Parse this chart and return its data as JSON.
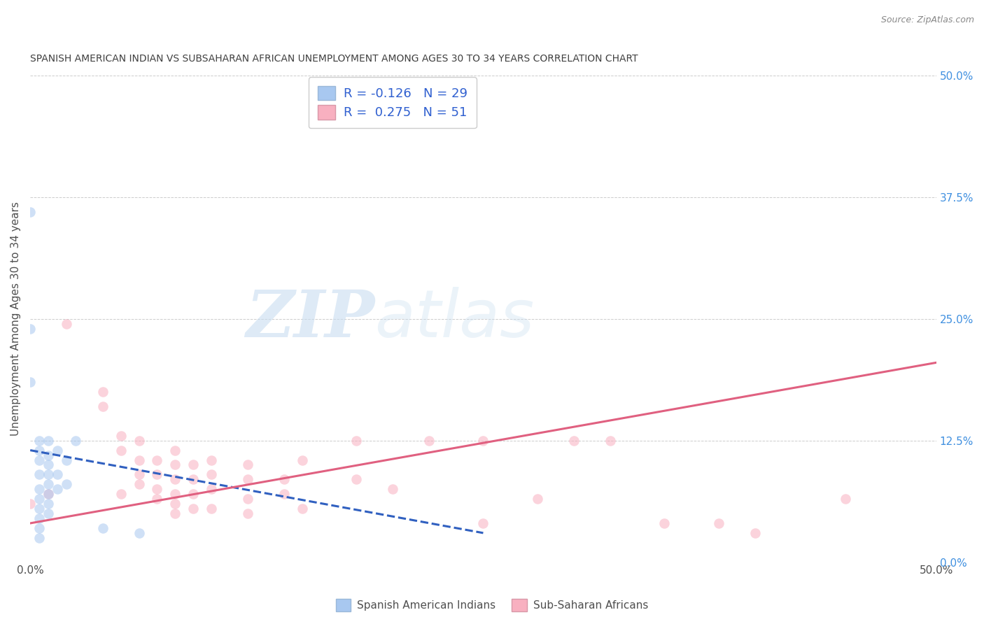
{
  "title": "SPANISH AMERICAN INDIAN VS SUBSAHARAN AFRICAN UNEMPLOYMENT AMONG AGES 30 TO 34 YEARS CORRELATION CHART",
  "source": "Source: ZipAtlas.com",
  "ylabel": "Unemployment Among Ages 30 to 34 years",
  "xlim": [
    0.0,
    0.5
  ],
  "ylim": [
    0.0,
    0.5
  ],
  "xticks": [
    0.0,
    0.125,
    0.25,
    0.375,
    0.5
  ],
  "yticks": [
    0.0,
    0.125,
    0.25,
    0.375,
    0.5
  ],
  "ytick_labels_right": [
    "0.0%",
    "12.5%",
    "25.0%",
    "37.5%",
    "50.0%"
  ],
  "watermark_zip": "ZIP",
  "watermark_atlas": "atlas",
  "blue_scatter": [
    [
      0.0,
      0.36
    ],
    [
      0.0,
      0.24
    ],
    [
      0.0,
      0.185
    ],
    [
      0.005,
      0.125
    ],
    [
      0.005,
      0.115
    ],
    [
      0.005,
      0.105
    ],
    [
      0.005,
      0.09
    ],
    [
      0.005,
      0.075
    ],
    [
      0.005,
      0.065
    ],
    [
      0.005,
      0.055
    ],
    [
      0.005,
      0.045
    ],
    [
      0.005,
      0.035
    ],
    [
      0.005,
      0.025
    ],
    [
      0.01,
      0.125
    ],
    [
      0.01,
      0.11
    ],
    [
      0.01,
      0.1
    ],
    [
      0.01,
      0.09
    ],
    [
      0.01,
      0.08
    ],
    [
      0.01,
      0.07
    ],
    [
      0.01,
      0.06
    ],
    [
      0.01,
      0.05
    ],
    [
      0.015,
      0.115
    ],
    [
      0.015,
      0.09
    ],
    [
      0.015,
      0.075
    ],
    [
      0.02,
      0.105
    ],
    [
      0.02,
      0.08
    ],
    [
      0.025,
      0.125
    ],
    [
      0.06,
      0.03
    ],
    [
      0.04,
      0.035
    ]
  ],
  "pink_scatter": [
    [
      0.02,
      0.245
    ],
    [
      0.04,
      0.175
    ],
    [
      0.04,
      0.16
    ],
    [
      0.05,
      0.13
    ],
    [
      0.05,
      0.115
    ],
    [
      0.05,
      0.07
    ],
    [
      0.06,
      0.125
    ],
    [
      0.06,
      0.105
    ],
    [
      0.06,
      0.09
    ],
    [
      0.06,
      0.08
    ],
    [
      0.07,
      0.105
    ],
    [
      0.07,
      0.09
    ],
    [
      0.07,
      0.075
    ],
    [
      0.07,
      0.065
    ],
    [
      0.08,
      0.115
    ],
    [
      0.08,
      0.1
    ],
    [
      0.08,
      0.085
    ],
    [
      0.08,
      0.07
    ],
    [
      0.08,
      0.06
    ],
    [
      0.08,
      0.05
    ],
    [
      0.09,
      0.1
    ],
    [
      0.09,
      0.085
    ],
    [
      0.09,
      0.07
    ],
    [
      0.09,
      0.055
    ],
    [
      0.1,
      0.105
    ],
    [
      0.1,
      0.09
    ],
    [
      0.1,
      0.075
    ],
    [
      0.1,
      0.055
    ],
    [
      0.12,
      0.1
    ],
    [
      0.12,
      0.085
    ],
    [
      0.12,
      0.065
    ],
    [
      0.12,
      0.05
    ],
    [
      0.14,
      0.085
    ],
    [
      0.14,
      0.07
    ],
    [
      0.15,
      0.105
    ],
    [
      0.15,
      0.055
    ],
    [
      0.18,
      0.125
    ],
    [
      0.18,
      0.085
    ],
    [
      0.2,
      0.075
    ],
    [
      0.22,
      0.125
    ],
    [
      0.25,
      0.125
    ],
    [
      0.25,
      0.04
    ],
    [
      0.28,
      0.065
    ],
    [
      0.3,
      0.125
    ],
    [
      0.32,
      0.125
    ],
    [
      0.35,
      0.04
    ],
    [
      0.38,
      0.04
    ],
    [
      0.4,
      0.03
    ],
    [
      0.45,
      0.065
    ],
    [
      0.0,
      0.06
    ],
    [
      0.01,
      0.07
    ]
  ],
  "blue_line": {
    "x0": 0.0,
    "y0": 0.115,
    "x1": 0.25,
    "y1": 0.03
  },
  "pink_line": {
    "x0": 0.0,
    "y0": 0.04,
    "x1": 0.5,
    "y1": 0.205
  },
  "blue_line_color": "#3060c0",
  "pink_line_color": "#e06080",
  "blue_dot_color": "#a8c8f0",
  "pink_dot_color": "#f8b0c0",
  "grid_color": "#cccccc",
  "background_color": "#ffffff",
  "title_color": "#404040",
  "axis_label_color": "#505050",
  "tick_label_color_right": "#4090e0",
  "tick_label_color_bottom": "#505050",
  "dot_size": 110,
  "dot_alpha": 0.55,
  "line_width": 2.2
}
